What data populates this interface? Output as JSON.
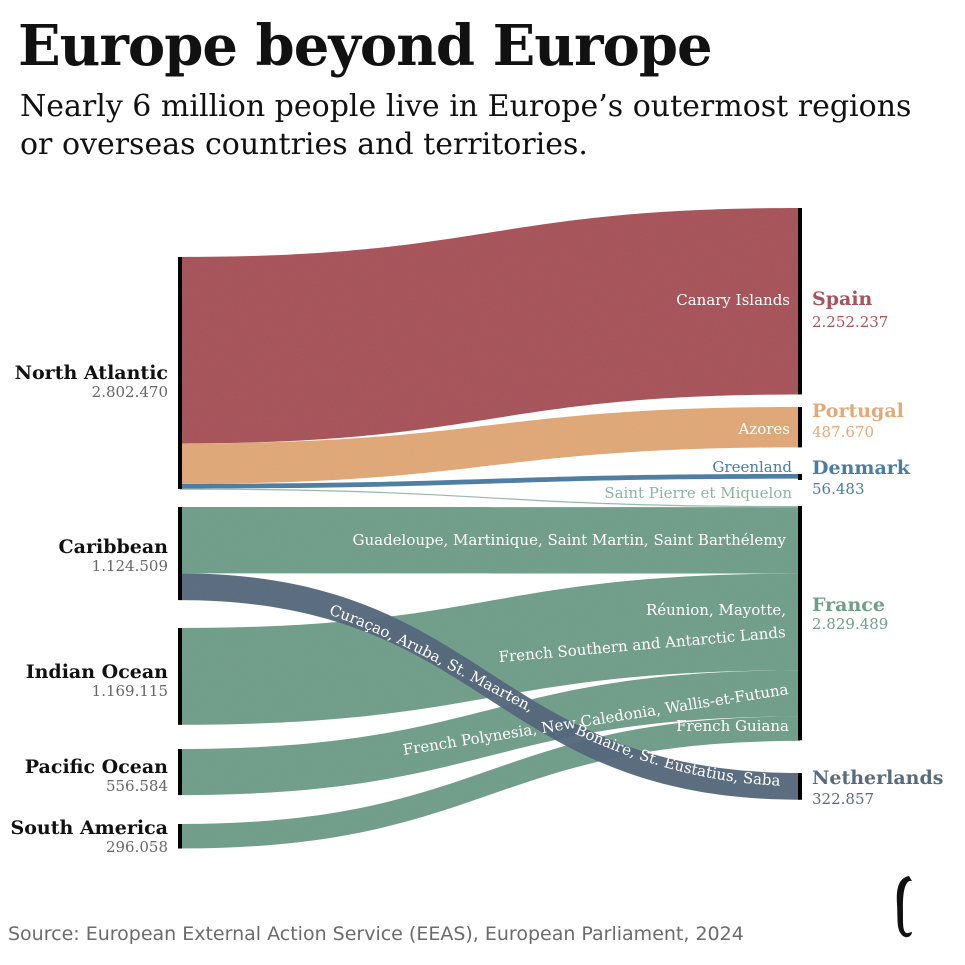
{
  "header": {
    "title": "Europe beyond Europe",
    "subtitle": "Nearly 6 million people live in Europe’s outermost regions or overseas countries and territories."
  },
  "footer": {
    "source": "Source: European External Action Service (EEAS), European Parliament, 2024"
  },
  "logo": {
    "icon": "publisher-logo-icon"
  },
  "colors": {
    "spain": "#a8525a",
    "portugal": "#e3a978",
    "denmark": "#4b7da3",
    "france": "#6f9f8a",
    "netherlands": "#5a6b80",
    "source_bar": "#000000"
  },
  "chart_data": {
    "type": "sankey",
    "title": "Europe beyond Europe",
    "subtitle": "Nearly 6 million people live in Europe’s outermost regions or overseas countries and territories.",
    "sources": [
      {
        "key": "north_atlantic",
        "name": "North Atlantic",
        "value": 2802470,
        "label": "2.802.470"
      },
      {
        "key": "caribbean",
        "name": "Caribbean",
        "value": 1124509,
        "label": "1.124.509"
      },
      {
        "key": "indian_ocean",
        "name": "Indian Ocean",
        "value": 1169115,
        "label": "1.169.115"
      },
      {
        "key": "pacific_ocean",
        "name": "Pacific Ocean",
        "value": 556584,
        "label": "556.584"
      },
      {
        "key": "south_america",
        "name": "South America",
        "value": 296058,
        "label": "296.058"
      }
    ],
    "targets": [
      {
        "key": "spain",
        "name": "Spain",
        "value": 2252237,
        "label": "2.252.237",
        "color": "#a8525a"
      },
      {
        "key": "portugal",
        "name": "Portugal",
        "value": 487670,
        "label": "487.670",
        "color": "#e3a978"
      },
      {
        "key": "denmark",
        "name": "Denmark",
        "value": 56483,
        "label": "56.483",
        "color": "#4b7da3"
      },
      {
        "key": "france",
        "name": "France",
        "value": 2829489,
        "label": "2.829.489",
        "color": "#6f9f8a"
      },
      {
        "key": "netherlands",
        "name": "Netherlands",
        "value": 322857,
        "label": "322.857",
        "color": "#5a6b80"
      }
    ],
    "flows": [
      {
        "source": "north_atlantic",
        "target": "spain",
        "value": 2252237,
        "label": "Canary Islands"
      },
      {
        "source": "north_atlantic",
        "target": "portugal",
        "value": 487670,
        "label": "Azores"
      },
      {
        "source": "north_atlantic",
        "target": "denmark",
        "value": 56483,
        "label": "Greenland"
      },
      {
        "source": "north_atlantic",
        "target": "france",
        "value": 6080,
        "label": "Saint Pierre et Miquelon"
      },
      {
        "source": "caribbean",
        "target": "france",
        "value": 801652,
        "label": "Guadeloupe, Martinique, Saint Martin, Saint Barthélemy"
      },
      {
        "source": "caribbean",
        "target": "netherlands",
        "value": 322857,
        "label": "Curaçao, Aruba, St. Maarten, Bonaire, St. Eustatius, Saba"
      },
      {
        "source": "indian_ocean",
        "target": "france",
        "value": 1169115,
        "label": "Réunion, Mayotte, French Southern and Antarctic Lands"
      },
      {
        "source": "pacific_ocean",
        "target": "france",
        "value": 556584,
        "label": "French Polynesia, New Caledonia, Wallis-et-Futuna"
      },
      {
        "source": "south_america",
        "target": "france",
        "value": 296058,
        "label": "French Guiana"
      }
    ],
    "flow_label_parts": {
      "reunion_line1": "Réunion, Mayotte,",
      "reunion_line2": "French Southern and Antarctic Lands",
      "curacao_part1": "Curaçao, Aruba, St. Maarten,",
      "curacao_part2": "Bonaire, St. Eustatius, Saba"
    }
  }
}
